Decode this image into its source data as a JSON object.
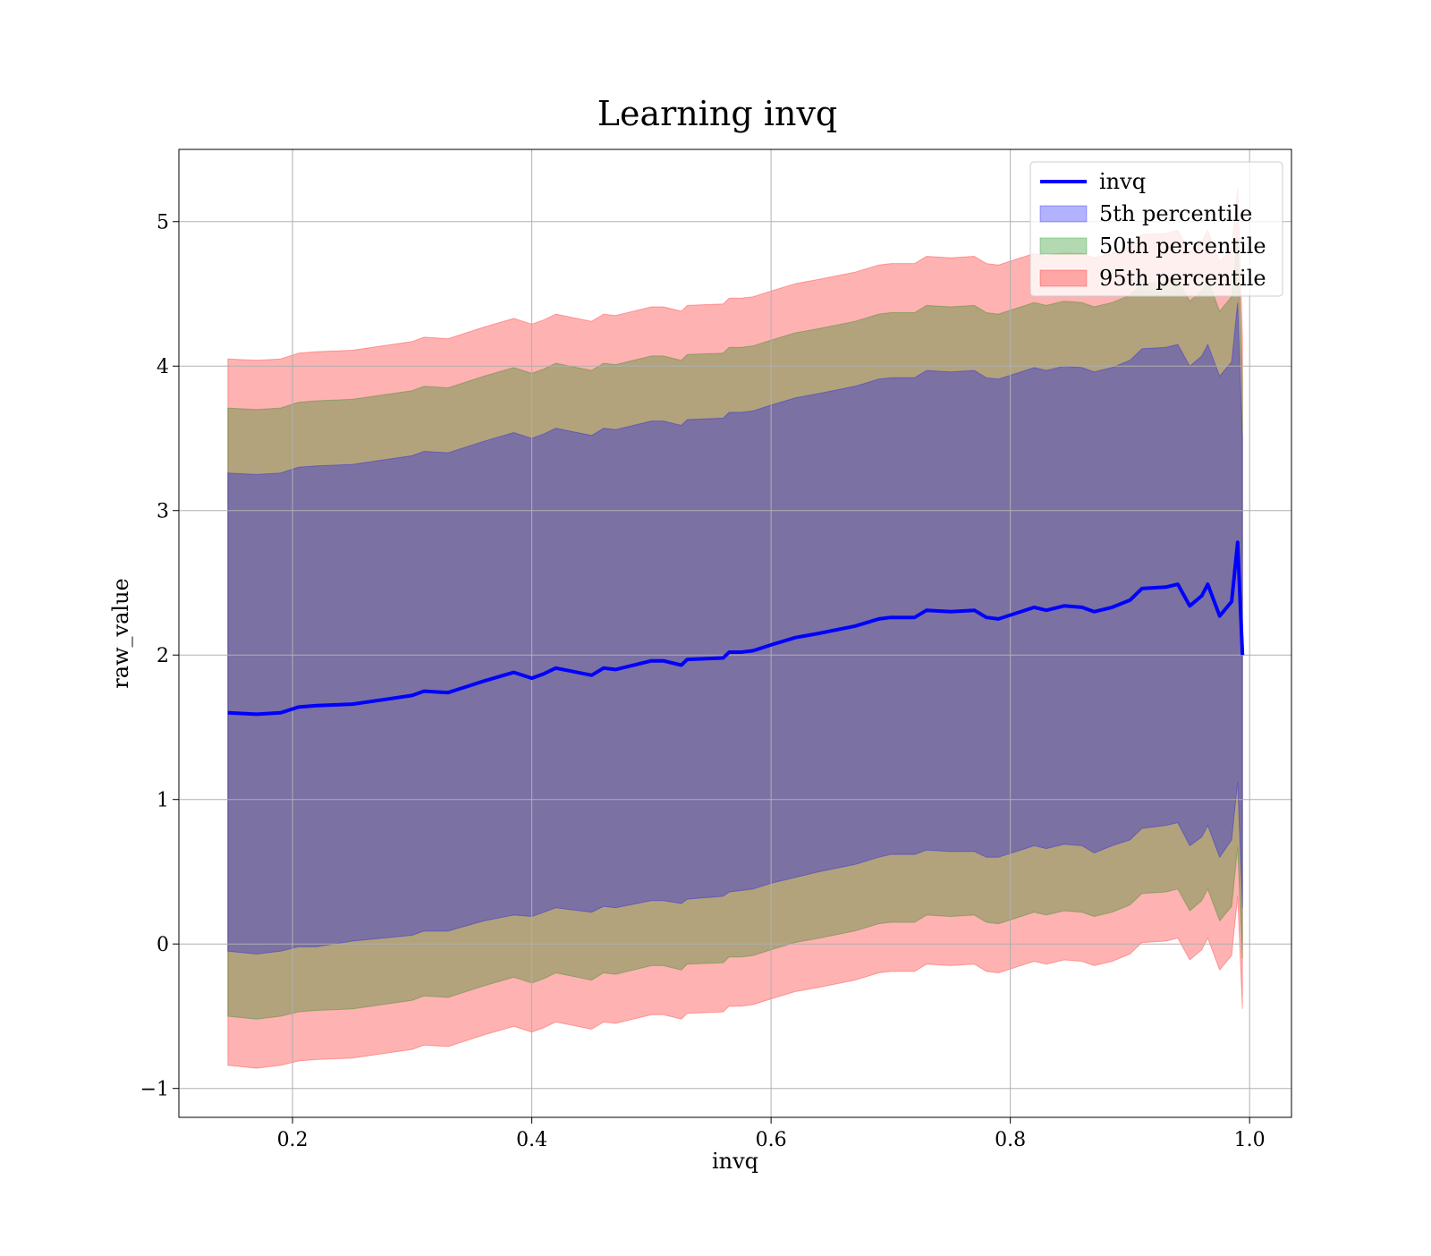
{
  "chart_data": {
    "type": "area",
    "title": "Learning invq",
    "xlabel": "invq",
    "ylabel": "raw_value",
    "xlim": [
      0.105,
      1.035
    ],
    "ylim": [
      -1.2,
      5.5
    ],
    "grid": true,
    "legend_position": "top-right",
    "xticks": [
      0.2,
      0.4,
      0.6,
      0.8,
      1.0
    ],
    "xtick_labels": [
      "0.2",
      "0.4",
      "0.6",
      "0.8",
      "1.0"
    ],
    "yticks": [
      -1,
      0,
      1,
      2,
      3,
      4,
      5
    ],
    "ytick_labels": [
      "−1",
      "0",
      "1",
      "2",
      "3",
      "4",
      "5"
    ],
    "x": [
      0.146,
      0.17,
      0.19,
      0.205,
      0.22,
      0.25,
      0.275,
      0.3,
      0.31,
      0.33,
      0.36,
      0.385,
      0.4,
      0.41,
      0.42,
      0.45,
      0.46,
      0.47,
      0.5,
      0.51,
      0.525,
      0.53,
      0.56,
      0.565,
      0.575,
      0.585,
      0.6,
      0.62,
      0.64,
      0.67,
      0.69,
      0.7,
      0.72,
      0.73,
      0.75,
      0.77,
      0.78,
      0.79,
      0.82,
      0.83,
      0.845,
      0.86,
      0.87,
      0.885,
      0.9,
      0.91,
      0.93,
      0.94,
      0.95,
      0.96,
      0.965,
      0.975,
      0.985,
      0.99,
      0.994
    ],
    "series": [
      {
        "name": "invq",
        "type": "line",
        "color": "#0000ff",
        "values": [
          1.6,
          1.59,
          1.6,
          1.64,
          1.65,
          1.66,
          1.69,
          1.72,
          1.75,
          1.74,
          1.82,
          1.88,
          1.84,
          1.87,
          1.91,
          1.86,
          1.91,
          1.9,
          1.96,
          1.96,
          1.93,
          1.97,
          1.98,
          2.02,
          2.02,
          2.03,
          2.07,
          2.12,
          2.15,
          2.2,
          2.25,
          2.26,
          2.26,
          2.31,
          2.3,
          2.31,
          2.26,
          2.25,
          2.33,
          2.31,
          2.34,
          2.33,
          2.3,
          2.33,
          2.38,
          2.46,
          2.47,
          2.49,
          2.34,
          2.41,
          2.49,
          2.27,
          2.37,
          2.78,
          2.0
        ]
      },
      {
        "name": "5th percentile",
        "type": "band",
        "color": "#0000ff",
        "lower": [
          -0.05,
          -0.07,
          -0.05,
          -0.02,
          -0.02,
          0.02,
          0.04,
          0.06,
          0.09,
          0.09,
          0.16,
          0.2,
          0.19,
          0.22,
          0.25,
          0.22,
          0.26,
          0.25,
          0.3,
          0.3,
          0.28,
          0.31,
          0.33,
          0.36,
          0.37,
          0.38,
          0.42,
          0.46,
          0.5,
          0.55,
          0.6,
          0.62,
          0.62,
          0.65,
          0.64,
          0.64,
          0.6,
          0.6,
          0.68,
          0.66,
          0.69,
          0.68,
          0.63,
          0.68,
          0.72,
          0.8,
          0.82,
          0.84,
          0.68,
          0.74,
          0.82,
          0.6,
          0.72,
          1.12,
          0.25
        ],
        "upper": [
          3.26,
          3.25,
          3.26,
          3.3,
          3.31,
          3.32,
          3.35,
          3.38,
          3.41,
          3.4,
          3.48,
          3.54,
          3.5,
          3.53,
          3.57,
          3.52,
          3.57,
          3.56,
          3.62,
          3.62,
          3.59,
          3.63,
          3.64,
          3.68,
          3.68,
          3.69,
          3.73,
          3.78,
          3.81,
          3.86,
          3.91,
          3.92,
          3.92,
          3.97,
          3.96,
          3.97,
          3.92,
          3.91,
          3.99,
          3.97,
          4.0,
          3.99,
          3.96,
          3.99,
          4.04,
          4.12,
          4.13,
          4.15,
          4.0,
          4.07,
          4.15,
          3.93,
          4.03,
          4.44,
          3.5
        ]
      },
      {
        "name": "50th percentile",
        "type": "band",
        "color": "#008000",
        "lower": [
          -0.5,
          -0.52,
          -0.5,
          -0.47,
          -0.46,
          -0.45,
          -0.42,
          -0.39,
          -0.36,
          -0.37,
          -0.29,
          -0.23,
          -0.27,
          -0.24,
          -0.2,
          -0.25,
          -0.2,
          -0.21,
          -0.15,
          -0.15,
          -0.18,
          -0.14,
          -0.13,
          -0.09,
          -0.09,
          -0.08,
          -0.04,
          0.01,
          0.04,
          0.09,
          0.14,
          0.15,
          0.15,
          0.2,
          0.19,
          0.2,
          0.15,
          0.14,
          0.22,
          0.2,
          0.23,
          0.22,
          0.19,
          0.22,
          0.27,
          0.35,
          0.36,
          0.38,
          0.23,
          0.3,
          0.38,
          0.16,
          0.26,
          0.67,
          -0.1
        ],
        "upper": [
          3.71,
          3.7,
          3.71,
          3.75,
          3.76,
          3.77,
          3.8,
          3.83,
          3.86,
          3.85,
          3.93,
          3.99,
          3.95,
          3.98,
          4.02,
          3.97,
          4.02,
          4.01,
          4.07,
          4.07,
          4.04,
          4.08,
          4.09,
          4.13,
          4.13,
          4.14,
          4.18,
          4.23,
          4.26,
          4.31,
          4.36,
          4.37,
          4.37,
          4.42,
          4.41,
          4.42,
          4.37,
          4.36,
          4.44,
          4.42,
          4.45,
          4.44,
          4.41,
          4.44,
          4.49,
          4.57,
          4.58,
          4.6,
          4.45,
          4.52,
          4.6,
          4.38,
          4.48,
          4.89,
          3.9
        ]
      },
      {
        "name": "95th percentile",
        "type": "band",
        "color": "#ff0000",
        "lower": [
          -0.84,
          -0.86,
          -0.84,
          -0.81,
          -0.8,
          -0.79,
          -0.76,
          -0.73,
          -0.7,
          -0.71,
          -0.63,
          -0.57,
          -0.61,
          -0.58,
          -0.54,
          -0.59,
          -0.54,
          -0.55,
          -0.49,
          -0.49,
          -0.52,
          -0.48,
          -0.47,
          -0.43,
          -0.43,
          -0.42,
          -0.38,
          -0.33,
          -0.3,
          -0.25,
          -0.2,
          -0.19,
          -0.19,
          -0.14,
          -0.15,
          -0.14,
          -0.19,
          -0.2,
          -0.12,
          -0.14,
          -0.11,
          -0.12,
          -0.15,
          -0.12,
          -0.07,
          0.01,
          0.02,
          0.04,
          -0.11,
          -0.04,
          0.04,
          -0.18,
          -0.08,
          0.33,
          -0.45
        ],
        "upper": [
          4.05,
          4.04,
          4.05,
          4.09,
          4.1,
          4.11,
          4.14,
          4.17,
          4.2,
          4.19,
          4.27,
          4.33,
          4.29,
          4.32,
          4.36,
          4.31,
          4.36,
          4.35,
          4.41,
          4.41,
          4.38,
          4.42,
          4.43,
          4.47,
          4.47,
          4.48,
          4.52,
          4.57,
          4.6,
          4.65,
          4.7,
          4.71,
          4.71,
          4.76,
          4.75,
          4.76,
          4.71,
          4.7,
          4.78,
          4.76,
          4.79,
          4.78,
          4.75,
          4.78,
          4.83,
          4.91,
          4.92,
          4.94,
          4.79,
          4.86,
          4.94,
          4.72,
          4.82,
          5.23,
          4.2
        ]
      }
    ]
  }
}
